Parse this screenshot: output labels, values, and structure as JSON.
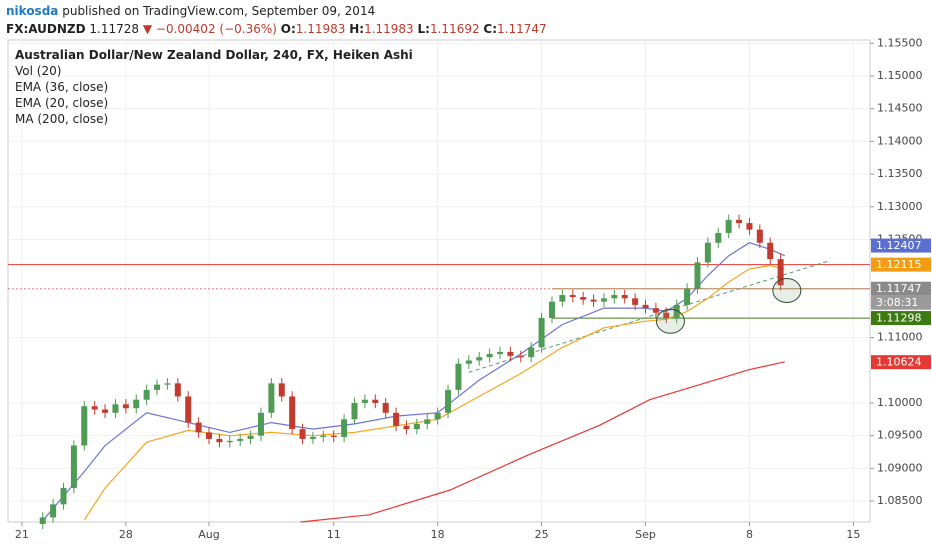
{
  "chart_data": {
    "type": "candlestick",
    "header": {
      "author": "nikosda",
      "published": "published on TradingView.com, September 09, 2014",
      "symbol": "FX:AUDNZD",
      "price": "1.11728",
      "change": "▼ −0.00402 (−0.36%)",
      "open_label": "O:",
      "open": "1.11983",
      "high_label": "H:",
      "high": "1.11983",
      "low_label": "L:",
      "low": "1.11692",
      "close_label": "C:",
      "close": "1.11747"
    },
    "legend": [
      "Australian Dollar/New Zealand Dollar, 240, FX, Heiken Ashi",
      "Vol (20)",
      "EMA (36, close)",
      "EMA (20, close)",
      "MA (200, close)"
    ],
    "up_color": "#4f9a55",
    "down_color": "#c23b2e",
    "xlim": [
      -0.67,
      40.8
    ],
    "xticks": [
      {
        "value": 0,
        "label": "21"
      },
      {
        "value": 5,
        "label": "28"
      },
      {
        "value": 9,
        "label": "Aug"
      },
      {
        "value": 15,
        "label": "11"
      },
      {
        "value": 20,
        "label": "18"
      },
      {
        "value": 25,
        "label": "25"
      },
      {
        "value": 30,
        "label": "Sep"
      },
      {
        "value": 35,
        "label": "8"
      },
      {
        "value": 40,
        "label": "15"
      }
    ],
    "ylim": [
      1.0818,
      1.1555
    ],
    "yticks": [
      {
        "value": 1.155,
        "label": "1.15500"
      },
      {
        "value": 1.15,
        "label": "1.15000"
      },
      {
        "value": 1.145,
        "label": "1.14500"
      },
      {
        "value": 1.14,
        "label": "1.14000"
      },
      {
        "value": 1.135,
        "label": "1.13500"
      },
      {
        "value": 1.13,
        "label": "1.13000"
      },
      {
        "value": 1.125,
        "label": "1.12500"
      },
      {
        "value": 1.11,
        "label": "1.11000"
      },
      {
        "value": 1.1,
        "label": "1.10000"
      },
      {
        "value": 1.095,
        "label": "1.09500"
      },
      {
        "value": 1.09,
        "label": "1.09000"
      },
      {
        "value": 1.085,
        "label": "1.08500"
      }
    ],
    "grid": true,
    "x": [
      1,
      1.5,
      2,
      2.5,
      3,
      3.5,
      4,
      4.5,
      5,
      5.5,
      6,
      6.5,
      7,
      7.5,
      8,
      8.5,
      9,
      9.5,
      10,
      10.5,
      11,
      11.5,
      12,
      12.5,
      13,
      13.5,
      14,
      14.5,
      15,
      15.5,
      16,
      16.5,
      17,
      17.5,
      18,
      18.5,
      19,
      19.5,
      20,
      20.5,
      21,
      21.5,
      22,
      22.5,
      23,
      23.5,
      24,
      24.5,
      25,
      25.5,
      26,
      26.5,
      27,
      27.5,
      28,
      28.5,
      29,
      29.5,
      30,
      30.5,
      31,
      31.5,
      32,
      32.5,
      33,
      33.5,
      34,
      34.5,
      35,
      35.5,
      36,
      36.5
    ],
    "open": [
      1.0815,
      1.0825,
      1.0845,
      1.087,
      1.0935,
      1.0995,
      1.099,
      1.0985,
      1.0998,
      1.0992,
      1.1005,
      1.102,
      1.1028,
      1.103,
      1.101,
      1.097,
      1.0955,
      1.0945,
      1.094,
      1.0942,
      1.0945,
      1.095,
      1.0985,
      1.103,
      1.101,
      1.096,
      1.0945,
      1.0948,
      1.095,
      1.0948,
      1.0975,
      1.1,
      1.1005,
      1.1,
      1.0985,
      1.0965,
      1.096,
      1.0968,
      1.0975,
      1.0985,
      1.102,
      1.106,
      1.1065,
      1.107,
      1.1075,
      1.1078,
      1.1072,
      1.107,
      1.1085,
      1.113,
      1.1155,
      1.1165,
      1.1162,
      1.1158,
      1.1155,
      1.116,
      1.1165,
      1.116,
      1.115,
      1.1145,
      1.1138,
      1.113,
      1.115,
      1.1175,
      1.1215,
      1.1245,
      1.126,
      1.128,
      1.1275,
      1.1265,
      1.1245,
      1.122
    ],
    "high": [
      1.0833,
      1.0853,
      1.0878,
      1.0943,
      1.1003,
      1.1003,
      1.0998,
      1.1006,
      1.1006,
      1.1013,
      1.1028,
      1.1036,
      1.1038,
      1.1038,
      1.1018,
      1.0978,
      1.0963,
      1.0953,
      1.095,
      1.0953,
      1.0958,
      1.0993,
      1.1038,
      1.1038,
      1.1018,
      1.0968,
      1.0956,
      1.0958,
      1.0958,
      1.0983,
      1.1008,
      1.1013,
      1.1013,
      1.1008,
      1.0993,
      1.0973,
      1.0976,
      1.0983,
      1.0993,
      1.1028,
      1.1068,
      1.1073,
      1.1078,
      1.1083,
      1.1086,
      1.1086,
      1.108,
      1.1093,
      1.1138,
      1.1163,
      1.1173,
      1.1173,
      1.117,
      1.1166,
      1.1168,
      1.1173,
      1.1173,
      1.1168,
      1.1158,
      1.1153,
      1.1146,
      1.1158,
      1.1183,
      1.1223,
      1.1253,
      1.1268,
      1.1288,
      1.1288,
      1.1283,
      1.1273,
      1.1253,
      1.1228
    ],
    "low": [
      1.0807,
      1.0817,
      1.0837,
      1.0862,
      1.0927,
      1.0982,
      1.0977,
      1.0977,
      1.0984,
      1.0984,
      1.0997,
      1.1012,
      1.102,
      1.1002,
      1.0962,
      1.0947,
      1.0937,
      1.0932,
      1.0932,
      1.0934,
      1.0937,
      1.0942,
      1.0977,
      1.1002,
      1.0952,
      1.0937,
      1.0937,
      1.094,
      1.094,
      1.094,
      1.0967,
      1.0992,
      1.0992,
      1.0977,
      1.0957,
      1.0952,
      1.0952,
      1.096,
      1.0967,
      1.0977,
      1.1012,
      1.1052,
      1.1057,
      1.1062,
      1.1067,
      1.1064,
      1.1062,
      1.1062,
      1.1077,
      1.1122,
      1.1147,
      1.1154,
      1.115,
      1.1147,
      1.1147,
      1.1152,
      1.1152,
      1.1142,
      1.1137,
      1.113,
      1.1122,
      1.1122,
      1.1142,
      1.1167,
      1.1207,
      1.1237,
      1.1252,
      1.1267,
      1.1257,
      1.1237,
      1.1212,
      1.1172
    ],
    "close": [
      1.0825,
      1.0845,
      1.087,
      1.0935,
      1.0995,
      1.099,
      1.0985,
      1.0998,
      1.0992,
      1.1005,
      1.102,
      1.1028,
      1.103,
      1.101,
      1.097,
      1.0955,
      1.0945,
      1.094,
      1.0942,
      1.0945,
      1.095,
      1.0985,
      1.103,
      1.101,
      1.096,
      1.0945,
      1.0948,
      1.095,
      1.0948,
      1.0975,
      1.1,
      1.1005,
      1.1,
      1.0985,
      1.0965,
      1.096,
      1.0968,
      1.0975,
      1.0985,
      1.102,
      1.106,
      1.1065,
      1.107,
      1.1075,
      1.1078,
      1.1072,
      1.107,
      1.1085,
      1.113,
      1.1155,
      1.1165,
      1.1162,
      1.1158,
      1.1155,
      1.116,
      1.1165,
      1.116,
      1.115,
      1.1145,
      1.1138,
      1.113,
      1.115,
      1.1175,
      1.1215,
      1.1245,
      1.126,
      1.128,
      1.1275,
      1.1265,
      1.1245,
      1.122,
      1.118
    ],
    "series": [
      {
        "color": "#f5a623",
        "x": [
          3,
          4,
          6,
          8,
          10,
          12,
          14,
          16,
          18,
          20,
          22,
          24,
          26,
          28,
          30,
          31,
          32,
          33,
          34,
          35,
          36,
          36.7
        ],
        "values": [
          1.0821,
          1.087,
          1.094,
          1.0958,
          1.095,
          1.0955,
          1.095,
          1.0955,
          1.0965,
          1.0975,
          1.101,
          1.1045,
          1.1085,
          1.1115,
          1.1125,
          1.1128,
          1.114,
          1.116,
          1.1185,
          1.1205,
          1.121,
          1.1205
        ]
      },
      {
        "color": "#6a74d6",
        "x": [
          1,
          3,
          4,
          6,
          8,
          10,
          12,
          14,
          16,
          18,
          20,
          22,
          24,
          26,
          28,
          30,
          31,
          32,
          33,
          34,
          35,
          36,
          36.7
        ],
        "values": [
          1.082,
          1.0895,
          1.0935,
          1.0985,
          1.097,
          1.0955,
          1.097,
          1.096,
          1.0968,
          1.098,
          1.0985,
          1.1035,
          1.1075,
          1.112,
          1.1145,
          1.1145,
          1.114,
          1.116,
          1.1195,
          1.1225,
          1.1245,
          1.1235,
          1.1225
        ]
      },
      {
        "color": "#e53935",
        "x": [
          13.4,
          16.7,
          20.6,
          24.4,
          27.8,
          30.2,
          32.6,
          35,
          36.7
        ],
        "values": [
          1.0818,
          1.0829,
          1.0867,
          1.0921,
          1.0966,
          1.1005,
          1.1028,
          1.1051,
          1.1063
        ]
      }
    ],
    "hlines": [
      {
        "value": 1.12115,
        "color": "#e53935",
        "from": -0.67,
        "dash": false
      },
      {
        "value": 1.11298,
        "color": "#4a7a1e",
        "from": 25.5,
        "dash": false
      },
      {
        "value": 1.11747,
        "color": "#8a8a3a",
        "from": 25.5,
        "dash": false
      },
      {
        "value": 1.11747,
        "color": "#f08080",
        "from": -0.67,
        "dash": true
      }
    ],
    "trendline": {
      "x": [
        21.5,
        38.8
      ],
      "y": [
        1.1047,
        1.1217
      ],
      "color": "#5a9a6a"
    },
    "circles": [
      {
        "x": 31.2,
        "y": 1.1125
      },
      {
        "x": 36.8,
        "y": 1.1172
      }
    ],
    "price_tags": [
      {
        "value": 1.12407,
        "color": "#5b6fd1"
      },
      {
        "value": 1.12115,
        "color": "#f39c12"
      },
      {
        "value": 1.11747,
        "color": "#8a8a8a"
      },
      {
        "value": 1.11298,
        "color": "#3d7a12"
      },
      {
        "value": 1.10624,
        "color": "#e53935"
      }
    ],
    "countdown": "3:08:31"
  }
}
